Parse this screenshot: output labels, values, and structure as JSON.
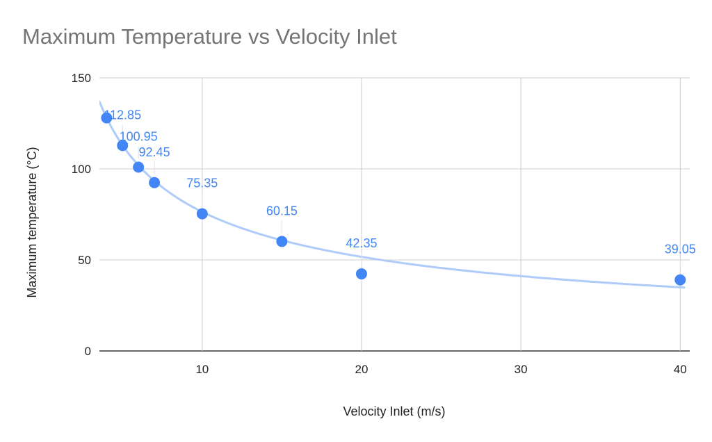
{
  "chart_data": {
    "type": "scatter",
    "title": "Maximum Temperature vs Velocity Inlet",
    "xlabel": "Velocity Inlet (m/s)",
    "ylabel": "Maximum temperature (°C)",
    "xlim": [
      3.55,
      40.6
    ],
    "ylim": [
      0,
      150
    ],
    "xticks": [
      10,
      20,
      30,
      40
    ],
    "yticks": [
      0,
      50,
      100,
      150
    ],
    "grid": true,
    "legend": "none",
    "colors": {
      "points": "#4285f4",
      "trendline": "#aecbfa",
      "labels": "#4285f4",
      "title": "#757575"
    },
    "series": [
      {
        "x": [
          4,
          5,
          6,
          7,
          10,
          15,
          20,
          40
        ],
        "y": [
          128,
          112.85,
          100.95,
          92.45,
          75.35,
          60.15,
          42.35,
          39.05
        ],
        "labels": [
          "",
          "112.85",
          "100.95",
          "92.45",
          "75.35",
          "60.15",
          "42.35",
          "39.05"
        ]
      }
    ],
    "trendline": {
      "type": "power",
      "coefficient": 280,
      "exponent": -0.564
    }
  }
}
